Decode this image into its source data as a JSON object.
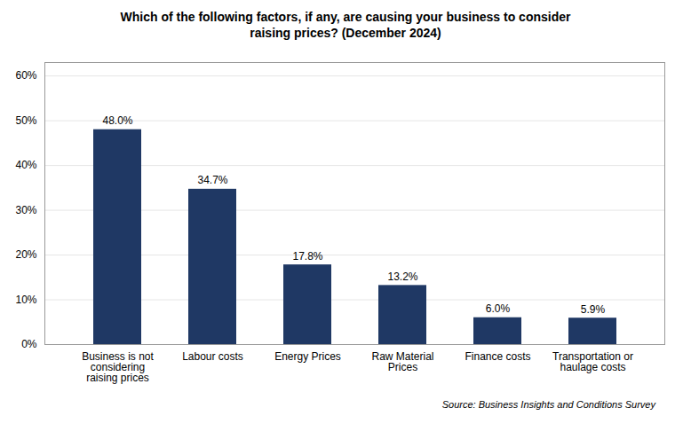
{
  "chart_data": {
    "type": "bar",
    "title": "Which of the following factors, if any, are causing your business to consider\nraising prices? (December 2024)",
    "categories": [
      "Business is not\nconsidering\nraising prices",
      "Labour costs",
      "Energy Prices",
      "Raw Material\nPrices",
      "Finance costs",
      "Transportation or\nhaulage costs"
    ],
    "values": [
      48.0,
      34.7,
      17.8,
      13.2,
      6.0,
      5.9
    ],
    "value_labels": [
      "48.0%",
      "34.7%",
      "17.8%",
      "13.2%",
      "6.0%",
      "5.9%"
    ],
    "data_labels": true,
    "color": "#1f3864",
    "ylim": [
      0,
      63
    ],
    "yticks": [
      {
        "value": 0,
        "label": "0%"
      },
      {
        "value": 10,
        "label": "10%"
      },
      {
        "value": 20,
        "label": "20%"
      },
      {
        "value": 30,
        "label": "30%"
      },
      {
        "value": 40,
        "label": "40%"
      },
      {
        "value": 50,
        "label": "50%"
      },
      {
        "value": 60,
        "label": "60%"
      }
    ],
    "grid": true,
    "source": "Source: Business Insights and Conditions Survey"
  }
}
